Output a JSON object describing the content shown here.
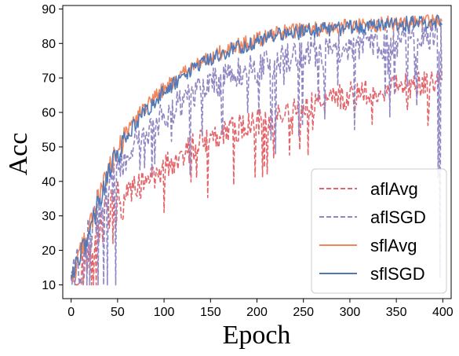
{
  "chart_data": {
    "type": "line",
    "xlabel": "Epoch",
    "ylabel": "Acc",
    "xlim": [
      -9,
      409
    ],
    "ylim": [
      6,
      91
    ],
    "x_ticks": [
      0,
      50,
      100,
      150,
      200,
      250,
      300,
      350,
      400
    ],
    "y_ticks": [
      10,
      20,
      30,
      40,
      50,
      60,
      70,
      80,
      90
    ],
    "grid": false,
    "legend_position": "bottom-right",
    "x_count": 400,
    "series": [
      {
        "name": "aflAvg",
        "color": "#e4646a",
        "dash": "dashed",
        "keypoints": [
          [
            0,
            10
          ],
          [
            10,
            13
          ],
          [
            20,
            20
          ],
          [
            30,
            26
          ],
          [
            40,
            30
          ],
          [
            50,
            34
          ],
          [
            60,
            36
          ],
          [
            75,
            39
          ],
          [
            100,
            44
          ],
          [
            125,
            49
          ],
          [
            150,
            53
          ],
          [
            175,
            55
          ],
          [
            200,
            57
          ],
          [
            225,
            59
          ],
          [
            250,
            61
          ],
          [
            275,
            63
          ],
          [
            300,
            65
          ],
          [
            325,
            66
          ],
          [
            350,
            67
          ],
          [
            375,
            68
          ],
          [
            400,
            69
          ]
        ],
        "noise": 4.0,
        "dips": [
          [
            22,
            10
          ],
          [
            45,
            22
          ],
          [
            100,
            31
          ],
          [
            175,
            39
          ],
          [
            260,
            55
          ],
          [
            305,
            58
          ],
          [
            385,
            60
          ]
        ]
      },
      {
        "name": "aflSGD",
        "color": "#8f86c3",
        "dash": "dashed",
        "keypoints": [
          [
            0,
            10
          ],
          [
            10,
            15
          ],
          [
            20,
            24
          ],
          [
            30,
            32
          ],
          [
            40,
            38
          ],
          [
            50,
            44
          ],
          [
            60,
            48
          ],
          [
            75,
            53
          ],
          [
            100,
            59
          ],
          [
            125,
            64
          ],
          [
            150,
            68
          ],
          [
            175,
            71
          ],
          [
            200,
            73
          ],
          [
            225,
            75
          ],
          [
            250,
            77
          ],
          [
            275,
            78
          ],
          [
            300,
            79
          ],
          [
            325,
            80
          ],
          [
            350,
            80
          ],
          [
            375,
            81
          ],
          [
            400,
            81
          ]
        ],
        "noise": 4.5,
        "dips": [
          [
            20,
            10
          ],
          [
            35,
            10
          ],
          [
            48,
            10
          ],
          [
            128,
            42
          ],
          [
            190,
            60
          ],
          [
            215,
            52
          ],
          [
            220,
            48
          ],
          [
            245,
            53
          ],
          [
            305,
            55
          ],
          [
            348,
            65
          ],
          [
            372,
            62
          ],
          [
            395,
            41
          ],
          [
            397,
            12
          ]
        ]
      },
      {
        "name": "sflAvg",
        "color": "#f0865e",
        "dash": "solid",
        "keypoints": [
          [
            0,
            12
          ],
          [
            10,
            19
          ],
          [
            20,
            27
          ],
          [
            30,
            35
          ],
          [
            40,
            43
          ],
          [
            50,
            49
          ],
          [
            60,
            54
          ],
          [
            75,
            60
          ],
          [
            100,
            67
          ],
          [
            125,
            72
          ],
          [
            150,
            76
          ],
          [
            175,
            79
          ],
          [
            200,
            81
          ],
          [
            225,
            83
          ],
          [
            250,
            84
          ],
          [
            275,
            84.5
          ],
          [
            300,
            85
          ],
          [
            325,
            85.5
          ],
          [
            350,
            86
          ],
          [
            375,
            86.5
          ],
          [
            400,
            87
          ]
        ],
        "noise": 2.2,
        "dips": []
      },
      {
        "name": "sflSGD",
        "color": "#4f79b8",
        "dash": "solid",
        "keypoints": [
          [
            0,
            11
          ],
          [
            10,
            18
          ],
          [
            20,
            26
          ],
          [
            30,
            34
          ],
          [
            40,
            42
          ],
          [
            50,
            48
          ],
          [
            60,
            53
          ],
          [
            75,
            59
          ],
          [
            100,
            66
          ],
          [
            125,
            71
          ],
          [
            150,
            75.5
          ],
          [
            175,
            78.5
          ],
          [
            200,
            80.5
          ],
          [
            225,
            82.5
          ],
          [
            250,
            83.5
          ],
          [
            275,
            84
          ],
          [
            300,
            84.5
          ],
          [
            325,
            85
          ],
          [
            350,
            85.5
          ],
          [
            375,
            86
          ],
          [
            400,
            86
          ]
        ],
        "noise": 2.2,
        "dips": []
      }
    ]
  }
}
